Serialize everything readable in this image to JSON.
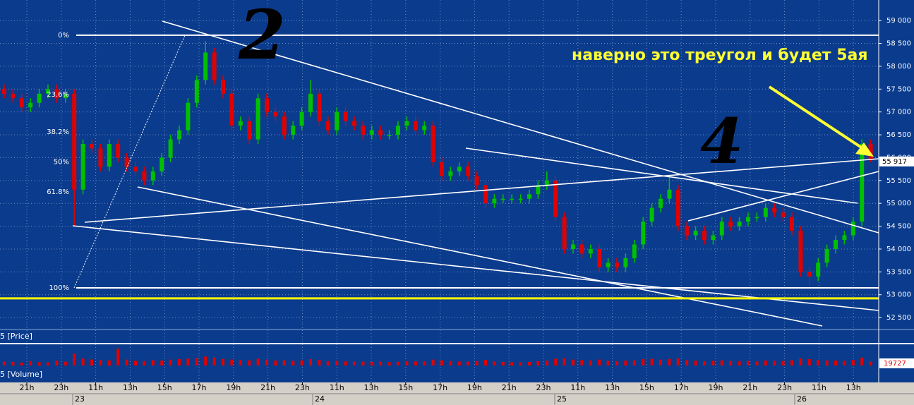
{
  "chart_data": {
    "type": "candlestick",
    "price_panel_label": "5 [Price]",
    "volume_panel_label": "5 [Volume]",
    "annotation": "наверно это треугол и будет 5ая",
    "wave_labels": [
      "2",
      "4"
    ],
    "up_color": "#00c000",
    "down_color": "#e00000",
    "ylim": [
      52270,
      59450
    ],
    "yticks": [
      {
        "value": 52500,
        "label": "52 500"
      },
      {
        "value": 53000,
        "label": "53 000"
      },
      {
        "value": 53500,
        "label": "53 500"
      },
      {
        "value": 54000,
        "label": "54 000"
      },
      {
        "value": 54500,
        "label": "54 500"
      },
      {
        "value": 55000,
        "label": "55 000"
      },
      {
        "value": 55500,
        "label": "55 500"
      },
      {
        "value": 56000,
        "label": "56 000"
      },
      {
        "value": 56500,
        "label": "56 500"
      },
      {
        "value": 57000,
        "label": "57 000"
      },
      {
        "value": 57500,
        "label": "57 500"
      },
      {
        "value": 58000,
        "label": "58 000"
      },
      {
        "value": 58500,
        "label": "58 500"
      },
      {
        "value": 59000,
        "label": "59 000"
      }
    ],
    "grid": true,
    "current_price": {
      "value": 55917,
      "label": "55 917"
    },
    "support_line": 52920,
    "fib_levels": [
      {
        "value": 58680,
        "label": "0%"
      },
      {
        "value": 57380,
        "label": "23.6%"
      },
      {
        "value": 56560,
        "label": "38.2%"
      },
      {
        "value": 55910,
        "label": "50%"
      },
      {
        "value": 55250,
        "label": "61.8%"
      },
      {
        "value": 53150,
        "label": "100%"
      }
    ],
    "time_labels": [
      "21h",
      "23h",
      "11h",
      "13h",
      "15h",
      "17h",
      "19h",
      "21h",
      "23h",
      "11h",
      "13h",
      "15h",
      "17h",
      "19h",
      "21h",
      "23h",
      "11h",
      "13h",
      "15h",
      "17h",
      "19h",
      "21h",
      "23h",
      "11h",
      "13h"
    ],
    "date_labels": [
      "23",
      "24",
      "25",
      "26"
    ],
    "open": [
      57500,
      57400,
      57300,
      57100,
      57200,
      57400,
      57500,
      57300,
      57400,
      55300,
      56300,
      56200,
      55800,
      56300,
      56000,
      55800,
      55700,
      55500,
      55700,
      56000,
      56400,
      56600,
      57200,
      57700,
      58300,
      57700,
      57400,
      56700,
      56800,
      56400,
      57300,
      57000,
      56900,
      56500,
      56700,
      57000,
      57400,
      56800,
      56600,
      57000,
      56800,
      56700,
      56500,
      56600,
      56500,
      56500,
      56700,
      56800,
      56600,
      56700,
      55900,
      55600,
      55700,
      55800,
      55600,
      55400,
      55000,
      55100,
      55100,
      55100,
      55100,
      55200,
      55400,
      55500,
      54700,
      54000,
      54100,
      53900,
      54000,
      53600,
      53700,
      53600,
      53800,
      54100,
      54600,
      54900,
      55100,
      55300,
      54500,
      54300,
      54400,
      54200,
      54300,
      54600,
      54500,
      54600,
      54700,
      54700,
      54900,
      54800,
      54700,
      54400,
      53500,
      53400,
      53700,
      54000,
      54200,
      54300,
      54600,
      56300
    ],
    "high": [
      57600,
      57500,
      57400,
      57300,
      57500,
      57600,
      57600,
      57500,
      57500,
      56400,
      56400,
      56300,
      56400,
      56400,
      56100,
      55900,
      55800,
      55800,
      56100,
      56500,
      56700,
      57300,
      57800,
      58550,
      58400,
      57800,
      57500,
      56900,
      56900,
      57400,
      57400,
      57100,
      57000,
      56800,
      57100,
      57700,
      57500,
      56900,
      57100,
      57100,
      56900,
      56800,
      56700,
      56700,
      56600,
      56800,
      56900,
      56900,
      56800,
      56800,
      56000,
      55800,
      55900,
      55900,
      55700,
      55500,
      55200,
      55200,
      55200,
      55200,
      55300,
      55500,
      55700,
      55600,
      54800,
      54200,
      54200,
      54100,
      54100,
      53800,
      53800,
      53900,
      54200,
      54700,
      55000,
      55200,
      55600,
      55400,
      54600,
      54500,
      54500,
      54400,
      54700,
      54700,
      54700,
      54800,
      54800,
      55000,
      55000,
      54900,
      54800,
      54500,
      53600,
      53800,
      54100,
      54300,
      54400,
      54700,
      56400,
      56400
    ],
    "low": [
      57300,
      57200,
      57000,
      57000,
      57100,
      57300,
      57200,
      57200,
      54500,
      55200,
      56100,
      55700,
      55700,
      55900,
      55700,
      55600,
      55400,
      55400,
      55600,
      55900,
      56300,
      56500,
      57100,
      57600,
      57600,
      57300,
      56600,
      56600,
      56300,
      56300,
      56900,
      56800,
      56400,
      56400,
      56600,
      56900,
      56700,
      56500,
      56500,
      56700,
      56600,
      56400,
      56400,
      56400,
      56400,
      56400,
      56600,
      56500,
      56500,
      55800,
      55500,
      55500,
      55600,
      55500,
      55300,
      54900,
      54900,
      55000,
      55000,
      55000,
      55000,
      55100,
      55300,
      54600,
      53900,
      53900,
      53800,
      53800,
      53500,
      53500,
      53500,
      53500,
      53700,
      54000,
      54500,
      54800,
      55000,
      54400,
      54200,
      54200,
      54100,
      54100,
      54200,
      54400,
      54400,
      54500,
      54600,
      54600,
      54700,
      54600,
      54300,
      53400,
      53200,
      53300,
      53600,
      53900,
      54100,
      54200,
      54500,
      55900
    ],
    "close": [
      57400,
      57300,
      57100,
      57200,
      57400,
      57500,
      57300,
      57400,
      55300,
      56300,
      56200,
      55800,
      56300,
      56000,
      55800,
      55700,
      55500,
      55700,
      56000,
      56400,
      56600,
      57200,
      57700,
      58300,
      57700,
      57400,
      56700,
      56800,
      56400,
      57300,
      57000,
      56900,
      56500,
      56700,
      57000,
      57400,
      56800,
      56600,
      57000,
      56800,
      56700,
      56500,
      56600,
      56500,
      56500,
      56700,
      56800,
      56600,
      56700,
      55900,
      55600,
      55700,
      55800,
      55600,
      55400,
      55000,
      55100,
      55100,
      55100,
      55100,
      55200,
      55400,
      55500,
      54700,
      54000,
      54100,
      53900,
      54000,
      53600,
      53700,
      53600,
      53800,
      54100,
      54600,
      54900,
      55100,
      55300,
      54500,
      54300,
      54400,
      54200,
      54300,
      54600,
      54500,
      54600,
      54700,
      54700,
      54900,
      54800,
      54700,
      54400,
      53500,
      53400,
      53700,
      54000,
      54200,
      54300,
      54600,
      56300,
      55950
    ],
    "volume_ylim": [
      0,
      100000
    ],
    "volume": [
      20000,
      18000,
      15000,
      22000,
      17000,
      16000,
      25000,
      19000,
      60000,
      35000,
      30000,
      28000,
      26000,
      85000,
      30000,
      24000,
      22000,
      27000,
      25000,
      30000,
      32000,
      35000,
      38000,
      45000,
      40000,
      33000,
      30000,
      28000,
      26000,
      34000,
      30000,
      25000,
      27000,
      24000,
      26000,
      32000,
      28000,
      22000,
      24000,
      21000,
      20000,
      19000,
      18000,
      20000,
      17000,
      19000,
      22000,
      20000,
      21000,
      30000,
      26000,
      22000,
      20000,
      19000,
      22000,
      28000,
      20000,
      18000,
      17000,
      16000,
      18000,
      22000,
      25000,
      34000,
      38000,
      30000,
      28000,
      26000,
      30000,
      24000,
      22000,
      25000,
      27000,
      32000,
      34000,
      30000,
      33000,
      36000,
      28000,
      25000,
      22000,
      24000,
      26000,
      23000,
      22000,
      24000,
      21000,
      25000,
      24000,
      23000,
      27000,
      36000,
      32000,
      28000,
      26000,
      25000,
      24000,
      28000,
      40000,
      19727
    ]
  }
}
